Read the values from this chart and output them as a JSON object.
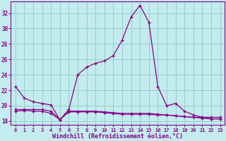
{
  "xlabel": "Windchill (Refroidissement éolien,°C)",
  "background_color": "#c2ecee",
  "line_color": "#880088",
  "grid_color": "#99cccc",
  "x": [
    0,
    1,
    2,
    3,
    4,
    5,
    6,
    7,
    8,
    9,
    10,
    11,
    12,
    13,
    14,
    15,
    16,
    17,
    18,
    19,
    20,
    21,
    22,
    23
  ],
  "y_main": [
    22.5,
    21.0,
    20.5,
    20.3,
    20.1,
    18.2,
    19.5,
    24.0,
    25.0,
    25.5,
    25.8,
    26.5,
    28.5,
    31.5,
    33.0,
    30.8,
    22.5,
    20.0,
    20.3,
    19.3,
    18.8,
    18.5,
    18.5,
    18.5
  ],
  "y_flat1": [
    19.5,
    19.5,
    19.5,
    19.5,
    19.3,
    18.2,
    19.3,
    19.3,
    19.3,
    19.3,
    19.2,
    19.1,
    19.0,
    19.0,
    19.0,
    19.0,
    18.9,
    18.8,
    18.7,
    18.6,
    18.5,
    18.5,
    18.3,
    18.3
  ],
  "y_flat2": [
    19.3,
    19.4,
    19.3,
    19.3,
    19.0,
    18.2,
    19.2,
    19.2,
    19.2,
    19.2,
    19.1,
    19.0,
    18.9,
    18.9,
    18.9,
    18.9,
    18.8,
    18.8,
    18.7,
    18.6,
    18.5,
    18.4,
    18.3,
    18.3
  ],
  "ylim": [
    17.5,
    33.5
  ],
  "xlim": [
    -0.5,
    23.5
  ],
  "yticks": [
    18,
    20,
    22,
    24,
    26,
    28,
    30,
    32
  ],
  "xticks": [
    0,
    1,
    2,
    3,
    4,
    5,
    6,
    7,
    8,
    9,
    10,
    11,
    12,
    13,
    14,
    15,
    16,
    17,
    18,
    19,
    20,
    21,
    22,
    23
  ]
}
